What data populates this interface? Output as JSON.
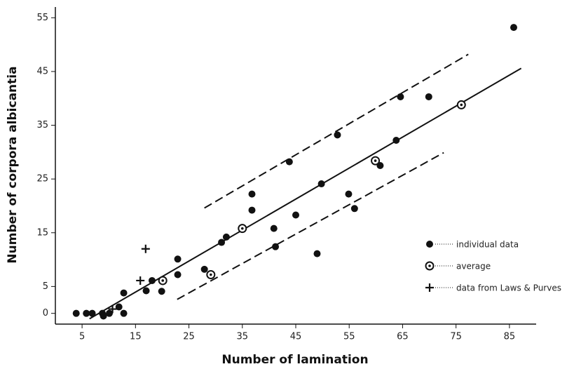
{
  "chart_data": {
    "type": "scatter",
    "x_label": "Number of lamination",
    "y_label": "Number of corpora albicantia",
    "xlim": [
      0,
      90
    ],
    "ylim": [
      -2,
      57
    ],
    "xticks": [
      5,
      15,
      25,
      35,
      45,
      55,
      65,
      75,
      85
    ],
    "yticks": [
      0,
      5,
      15,
      25,
      35,
      45,
      55
    ],
    "series": [
      {
        "name": "individual data",
        "color": "#111111",
        "marker": "dot",
        "x": [
          3.9,
          5.8,
          6.9,
          8.8,
          9,
          10.1,
          11.9,
          12.8,
          12.8,
          17,
          18.1,
          19.9,
          22.9,
          22.9,
          27.9,
          31.1,
          32,
          36.8,
          36.8,
          40.9,
          41.2,
          43.8,
          45,
          49,
          49.8,
          52.8,
          54.9,
          56,
          60.8,
          63.8,
          64.6,
          69.9,
          85.8
        ],
        "values": [
          0,
          0,
          0,
          0,
          -0.5,
          0,
          1.2,
          3.8,
          0,
          4.2,
          6.1,
          4.1,
          10.1,
          7.2,
          8.2,
          13.2,
          14.2,
          19.2,
          22.2,
          15.8,
          12.4,
          28.2,
          18.3,
          11.1,
          24.1,
          33.2,
          22.2,
          19.5,
          27.5,
          32.2,
          40.3,
          40.3,
          53.2
        ]
      },
      {
        "name": "average",
        "color": "#111111",
        "marker": "ring",
        "x": [
          20.1,
          29.1,
          35,
          59.9,
          76
        ],
        "values": [
          6.1,
          7.2,
          15.8,
          28.4,
          38.8
        ]
      },
      {
        "name": "data from Laws & Purves",
        "color": "#111111",
        "marker": "plus",
        "x": [
          10.7,
          15.9,
          16.9
        ],
        "values": [
          0.8,
          6.1,
          12
        ]
      }
    ],
    "lines": [
      {
        "x": [
          6.4,
          87.2
        ],
        "values": [
          -1,
          45.6
        ],
        "dash": false
      },
      {
        "x": [
          27.9,
          77.3
        ],
        "values": [
          19.6,
          48.2
        ],
        "dash": true
      },
      {
        "x": [
          22.8,
          72.7
        ],
        "values": [
          2.6,
          29.9
        ],
        "dash": true
      }
    ]
  }
}
